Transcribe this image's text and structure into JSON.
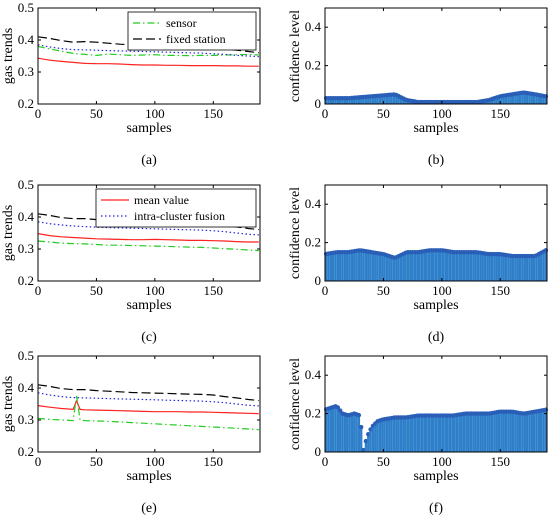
{
  "chart_data": [
    {
      "panel": "(a)",
      "type": "line",
      "title": "",
      "xlabel": "samples",
      "ylabel": "gas trends",
      "xlim": [
        0,
        190
      ],
      "ylim": [
        0.2,
        0.5
      ],
      "xticks": [
        0,
        50,
        100,
        150
      ],
      "yticks": [
        0.2,
        0.3,
        0.4,
        0.5
      ],
      "legend_position": "top-right",
      "series": [
        {
          "name": "sensor",
          "color": "#22cc22",
          "style": "dashdot",
          "x": [
            0,
            10,
            20,
            30,
            40,
            50,
            60,
            70,
            80,
            90,
            100,
            110,
            120,
            130,
            140,
            150,
            160,
            170,
            180,
            189
          ],
          "y": [
            0.38,
            0.372,
            0.365,
            0.358,
            0.355,
            0.352,
            0.356,
            0.354,
            0.352,
            0.353,
            0.354,
            0.352,
            0.352,
            0.351,
            0.352,
            0.352,
            0.353,
            0.354,
            0.355,
            0.353
          ]
        },
        {
          "name": "fixed station",
          "color": "#000000",
          "style": "dashed",
          "x": [
            0,
            10,
            20,
            30,
            40,
            50,
            60,
            70,
            80,
            90,
            100,
            110,
            120,
            130,
            140,
            150,
            160,
            170,
            180,
            189
          ],
          "y": [
            0.41,
            0.405,
            0.398,
            0.393,
            0.395,
            0.393,
            0.39,
            0.387,
            0.385,
            0.385,
            0.384,
            0.383,
            0.383,
            0.382,
            0.38,
            0.378,
            0.372,
            0.368,
            0.364,
            0.36
          ]
        },
        {
          "color": "#ff2222",
          "style": "solid",
          "x": [
            0,
            10,
            20,
            30,
            40,
            50,
            60,
            70,
            80,
            90,
            100,
            110,
            120,
            130,
            140,
            150,
            160,
            170,
            180,
            189
          ],
          "y": [
            0.343,
            0.337,
            0.333,
            0.33,
            0.327,
            0.326,
            0.326,
            0.325,
            0.323,
            0.322,
            0.322,
            0.321,
            0.321,
            0.32,
            0.32,
            0.32,
            0.319,
            0.319,
            0.318,
            0.318
          ]
        },
        {
          "color": "#2222dd",
          "style": "dotted",
          "x": [
            0,
            10,
            20,
            30,
            40,
            50,
            60,
            70,
            80,
            90,
            100,
            110,
            120,
            130,
            140,
            150,
            160,
            170,
            180,
            189
          ],
          "y": [
            0.385,
            0.378,
            0.373,
            0.37,
            0.369,
            0.368,
            0.367,
            0.366,
            0.365,
            0.364,
            0.363,
            0.362,
            0.361,
            0.36,
            0.359,
            0.357,
            0.355,
            0.352,
            0.35,
            0.348
          ]
        }
      ]
    },
    {
      "panel": "(b)",
      "type": "bar",
      "title": "",
      "xlabel": "samples",
      "ylabel": "confidence level",
      "xlim": [
        0,
        190
      ],
      "ylim": [
        0,
        0.5
      ],
      "xticks": [
        0,
        50,
        100,
        150
      ],
      "yticks": [
        0,
        0.2,
        0.4
      ],
      "series": [
        {
          "color": "#2e7fc9",
          "x": [
            0,
            10,
            20,
            30,
            40,
            50,
            60,
            70,
            80,
            90,
            100,
            110,
            120,
            130,
            140,
            150,
            160,
            170,
            180,
            189
          ],
          "y": [
            0.03,
            0.03,
            0.03,
            0.035,
            0.04,
            0.045,
            0.05,
            0.02,
            0.01,
            0.01,
            0.01,
            0.01,
            0.01,
            0.01,
            0.02,
            0.04,
            0.05,
            0.06,
            0.05,
            0.04
          ]
        }
      ]
    },
    {
      "panel": "(c)",
      "type": "line",
      "title": "",
      "xlabel": "samples",
      "ylabel": "gas trends",
      "xlim": [
        0,
        190
      ],
      "ylim": [
        0.2,
        0.5
      ],
      "xticks": [
        0,
        50,
        100,
        150
      ],
      "yticks": [
        0.2,
        0.3,
        0.4,
        0.5
      ],
      "legend_position": "top-right",
      "series": [
        {
          "name": "mean value",
          "color": "#ff2222",
          "style": "solid",
          "x": [
            0,
            10,
            20,
            30,
            40,
            50,
            60,
            70,
            80,
            90,
            100,
            110,
            120,
            130,
            140,
            150,
            160,
            170,
            180,
            189
          ],
          "y": [
            0.348,
            0.342,
            0.338,
            0.336,
            0.334,
            0.332,
            0.331,
            0.33,
            0.329,
            0.329,
            0.33,
            0.329,
            0.328,
            0.327,
            0.327,
            0.326,
            0.325,
            0.323,
            0.322,
            0.322
          ]
        },
        {
          "name": "intra-cluster fusion",
          "color": "#2222dd",
          "style": "dotted",
          "x": [
            0,
            10,
            20,
            30,
            40,
            50,
            60,
            70,
            80,
            90,
            100,
            110,
            120,
            130,
            140,
            150,
            160,
            170,
            180,
            189
          ],
          "y": [
            0.385,
            0.379,
            0.375,
            0.372,
            0.37,
            0.368,
            0.367,
            0.366,
            0.365,
            0.364,
            0.363,
            0.362,
            0.361,
            0.36,
            0.359,
            0.357,
            0.354,
            0.35,
            0.346,
            0.344
          ]
        },
        {
          "color": "#000000",
          "style": "dashed",
          "x": [
            0,
            10,
            20,
            30,
            40,
            50,
            60,
            70,
            80,
            90,
            100,
            110,
            120,
            130,
            140,
            150,
            160,
            170,
            180,
            189
          ],
          "y": [
            0.41,
            0.405,
            0.398,
            0.395,
            0.395,
            0.392,
            0.39,
            0.388,
            0.386,
            0.385,
            0.384,
            0.383,
            0.382,
            0.381,
            0.38,
            0.378,
            0.373,
            0.369,
            0.364,
            0.361
          ]
        },
        {
          "color": "#22cc22",
          "style": "dashdot",
          "x": [
            0,
            10,
            20,
            30,
            40,
            50,
            60,
            70,
            80,
            90,
            100,
            110,
            120,
            130,
            140,
            150,
            160,
            170,
            180,
            189
          ],
          "y": [
            0.325,
            0.322,
            0.318,
            0.317,
            0.316,
            0.314,
            0.312,
            0.312,
            0.311,
            0.31,
            0.309,
            0.308,
            0.307,
            0.306,
            0.305,
            0.303,
            0.301,
            0.299,
            0.297,
            0.295
          ]
        }
      ]
    },
    {
      "panel": "(d)",
      "type": "bar",
      "title": "",
      "xlabel": "samples",
      "ylabel": "confidence level",
      "xlim": [
        0,
        190
      ],
      "ylim": [
        0,
        0.5
      ],
      "xticks": [
        0,
        50,
        100,
        150
      ],
      "yticks": [
        0,
        0.2,
        0.4
      ],
      "series": [
        {
          "color": "#2e7fc9",
          "x": [
            0,
            10,
            20,
            30,
            40,
            50,
            60,
            70,
            80,
            90,
            100,
            110,
            120,
            130,
            140,
            150,
            160,
            170,
            180,
            189
          ],
          "y": [
            0.14,
            0.15,
            0.15,
            0.16,
            0.15,
            0.14,
            0.12,
            0.15,
            0.15,
            0.16,
            0.16,
            0.15,
            0.15,
            0.15,
            0.14,
            0.14,
            0.13,
            0.13,
            0.13,
            0.16
          ]
        }
      ]
    },
    {
      "panel": "(e)",
      "type": "line",
      "title": "",
      "xlabel": "samples",
      "ylabel": "gas trends",
      "xlim": [
        0,
        190
      ],
      "ylim": [
        0.2,
        0.5
      ],
      "xticks": [
        0,
        50,
        100,
        150
      ],
      "yticks": [
        0.2,
        0.3,
        0.4,
        0.5
      ],
      "series": [
        {
          "color": "#000000",
          "style": "dashed",
          "x": [
            0,
            10,
            20,
            30,
            40,
            50,
            60,
            70,
            80,
            90,
            100,
            110,
            120,
            130,
            140,
            150,
            160,
            170,
            180,
            189
          ],
          "y": [
            0.41,
            0.405,
            0.398,
            0.395,
            0.395,
            0.392,
            0.39,
            0.388,
            0.386,
            0.385,
            0.384,
            0.383,
            0.382,
            0.381,
            0.38,
            0.378,
            0.373,
            0.369,
            0.364,
            0.361
          ]
        },
        {
          "color": "#2222dd",
          "style": "dotted",
          "x": [
            0,
            10,
            20,
            30,
            40,
            50,
            60,
            70,
            80,
            90,
            100,
            110,
            120,
            130,
            140,
            150,
            160,
            170,
            180,
            189
          ],
          "y": [
            0.385,
            0.378,
            0.373,
            0.37,
            0.369,
            0.368,
            0.367,
            0.366,
            0.365,
            0.364,
            0.363,
            0.362,
            0.361,
            0.36,
            0.359,
            0.357,
            0.354,
            0.35,
            0.346,
            0.344
          ]
        },
        {
          "color": "#ff2222",
          "style": "solid",
          "x": [
            0,
            10,
            20,
            30,
            33,
            36,
            40,
            50,
            60,
            70,
            80,
            90,
            100,
            110,
            120,
            130,
            140,
            150,
            160,
            170,
            180,
            189
          ],
          "y": [
            0.345,
            0.34,
            0.336,
            0.333,
            0.36,
            0.333,
            0.332,
            0.331,
            0.33,
            0.329,
            0.328,
            0.327,
            0.326,
            0.326,
            0.326,
            0.325,
            0.325,
            0.324,
            0.323,
            0.322,
            0.321,
            0.32
          ]
        },
        {
          "color": "#22cc22",
          "style": "dashdot",
          "x": [
            0,
            10,
            20,
            30,
            33,
            36,
            40,
            50,
            60,
            70,
            80,
            90,
            100,
            110,
            120,
            130,
            140,
            150,
            160,
            170,
            180,
            189
          ],
          "y": [
            0.305,
            0.302,
            0.3,
            0.298,
            0.375,
            0.3,
            0.298,
            0.297,
            0.296,
            0.294,
            0.292,
            0.29,
            0.288,
            0.286,
            0.284,
            0.282,
            0.28,
            0.278,
            0.276,
            0.274,
            0.272,
            0.27
          ]
        }
      ]
    },
    {
      "panel": "(f)",
      "type": "bar",
      "title": "",
      "xlabel": "samples",
      "ylabel": "confidence level",
      "xlim": [
        0,
        190
      ],
      "ylim": [
        0,
        0.5
      ],
      "xticks": [
        0,
        50,
        100,
        150
      ],
      "yticks": [
        0,
        0.2,
        0.4
      ],
      "series": [
        {
          "color": "#2e7fc9",
          "x": [
            0,
            5,
            10,
            15,
            20,
            25,
            30,
            33,
            36,
            40,
            45,
            50,
            60,
            70,
            80,
            90,
            100,
            110,
            120,
            130,
            140,
            150,
            160,
            170,
            180,
            189
          ],
          "y": [
            0.22,
            0.23,
            0.24,
            0.2,
            0.19,
            0.2,
            0.19,
            0.01,
            0.08,
            0.13,
            0.16,
            0.17,
            0.18,
            0.18,
            0.19,
            0.19,
            0.19,
            0.19,
            0.2,
            0.2,
            0.2,
            0.21,
            0.21,
            0.2,
            0.21,
            0.22
          ]
        }
      ]
    }
  ]
}
